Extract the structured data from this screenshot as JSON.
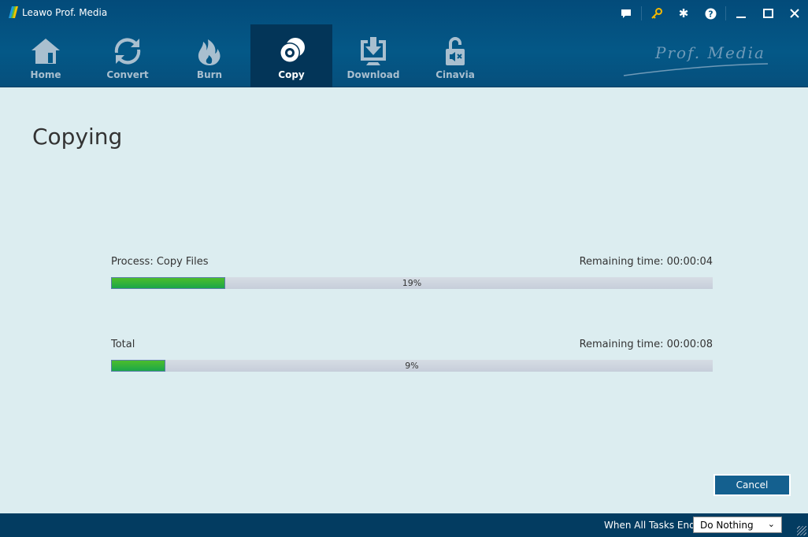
{
  "app": {
    "title": "Leawo Prof. Media",
    "brand": "Prof. Media"
  },
  "window_controls": [
    "chat-icon",
    "key-icon",
    "gear-icon",
    "help-icon",
    "minimize-icon",
    "maximize-icon",
    "close-icon"
  ],
  "colors": {
    "accent": "#034b7a",
    "key": "#f5b800",
    "progress": "#2bb13e"
  },
  "tabs": [
    {
      "label": "Home",
      "icon": "home-icon"
    },
    {
      "label": "Convert",
      "icon": "convert-icon"
    },
    {
      "label": "Burn",
      "icon": "fire-icon"
    },
    {
      "label": "Copy",
      "icon": "disc-icon",
      "active": true
    },
    {
      "label": "Download",
      "icon": "download-icon"
    },
    {
      "label": "Cinavia",
      "icon": "unlock-icon"
    }
  ],
  "main": {
    "heading": "Copying",
    "process": {
      "label": "Process:  Copy Files",
      "remaining": "Remaining time:  00:00:04",
      "percent_text": "19%",
      "progress": 19
    },
    "total": {
      "label": "Total",
      "remaining": "Remaining time:  00:00:08",
      "percent_text": "9%",
      "progress": 9
    },
    "cancel_label": "Cancel"
  },
  "footer": {
    "label": "When All Tasks End:",
    "selected": "Do Nothing"
  }
}
